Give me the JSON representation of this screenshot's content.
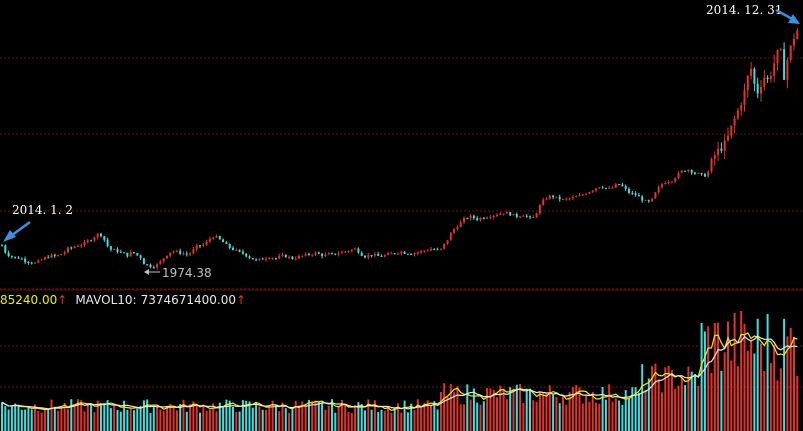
{
  "chart_data": {
    "type": "candlestick",
    "annotations": {
      "start_date": "2014. 1. 2",
      "end_date": "2014. 12. 31",
      "low_value": "1974.38"
    },
    "volume_legend": {
      "partial_value": "85240.00",
      "mavol10_label": "MAVOL10:",
      "mavol10_value": "7374671400.00",
      "arrow_glyph": "↑"
    },
    "price_range": [
      1900,
      3300
    ],
    "colors": {
      "up": "#e0342e",
      "down": "#44dcdc",
      "ma_white": "#e8e8e8",
      "ma_yellow": "#f0f000",
      "grid": "#7a1010",
      "arrow": "#3d8fe0"
    },
    "price_path": [
      [
        0,
        2115
      ],
      [
        4,
        2060
      ],
      [
        8,
        2040
      ],
      [
        12,
        2030
      ],
      [
        16,
        2020
      ],
      [
        20,
        2025
      ],
      [
        24,
        2010
      ],
      [
        28,
        2005
      ],
      [
        32,
        2000
      ],
      [
        36,
        1995
      ],
      [
        40,
        2010
      ],
      [
        44,
        2020
      ],
      [
        48,
        2030
      ],
      [
        52,
        2035
      ],
      [
        56,
        2030
      ],
      [
        60,
        2040
      ],
      [
        64,
        2050
      ],
      [
        68,
        2070
      ],
      [
        72,
        2075
      ],
      [
        76,
        2085
      ],
      [
        80,
        2090
      ],
      [
        84,
        2095
      ],
      [
        88,
        2110
      ],
      [
        92,
        2120
      ],
      [
        96,
        2140
      ],
      [
        100,
        2148
      ],
      [
        104,
        2120
      ],
      [
        108,
        2080
      ],
      [
        112,
        2060
      ],
      [
        116,
        2065
      ],
      [
        120,
        2050
      ],
      [
        124,
        2045
      ],
      [
        128,
        2035
      ],
      [
        132,
        2055
      ],
      [
        136,
        2040
      ],
      [
        140,
        2030
      ],
      [
        144,
        1995
      ],
      [
        148,
        1985
      ],
      [
        152,
        1978
      ],
      [
        156,
        1984
      ],
      [
        160,
        2000
      ],
      [
        164,
        2025
      ],
      [
        168,
        2045
      ],
      [
        172,
        2060
      ],
      [
        176,
        2055
      ],
      [
        180,
        2050
      ],
      [
        184,
        2045
      ],
      [
        188,
        2040
      ],
      [
        192,
        2055
      ],
      [
        196,
        2080
      ],
      [
        200,
        2085
      ],
      [
        204,
        2090
      ],
      [
        208,
        2110
      ],
      [
        212,
        2135
      ],
      [
        216,
        2130
      ],
      [
        220,
        2115
      ],
      [
        224,
        2100
      ],
      [
        228,
        2080
      ],
      [
        232,
        2070
      ],
      [
        236,
        2060
      ],
      [
        240,
        2050
      ],
      [
        244,
        2045
      ],
      [
        248,
        2030
      ],
      [
        252,
        2020
      ],
      [
        256,
        2010
      ],
      [
        260,
        2015
      ],
      [
        264,
        2020
      ],
      [
        268,
        2030
      ],
      [
        272,
        2025
      ],
      [
        276,
        2020
      ],
      [
        280,
        2030
      ],
      [
        284,
        2035
      ],
      [
        288,
        2028
      ],
      [
        292,
        2020
      ],
      [
        296,
        2025
      ],
      [
        300,
        2030
      ],
      [
        304,
        2035
      ],
      [
        308,
        2040
      ],
      [
        312,
        2045
      ],
      [
        316,
        2048
      ],
      [
        320,
        2040
      ],
      [
        324,
        2035
      ],
      [
        328,
        2042
      ],
      [
        332,
        2040
      ],
      [
        336,
        2045
      ],
      [
        340,
        2050
      ],
      [
        344,
        2055
      ],
      [
        348,
        2060
      ],
      [
        352,
        2065
      ],
      [
        356,
        2070
      ],
      [
        360,
        2048
      ],
      [
        364,
        2030
      ],
      [
        368,
        2035
      ],
      [
        372,
        2040
      ],
      [
        376,
        2035
      ],
      [
        380,
        2030
      ],
      [
        384,
        2035
      ],
      [
        388,
        2040
      ],
      [
        392,
        2045
      ],
      [
        396,
        2050
      ],
      [
        400,
        2055
      ],
      [
        404,
        2050
      ],
      [
        408,
        2048
      ],
      [
        412,
        2045
      ],
      [
        416,
        2050
      ],
      [
        420,
        2055
      ],
      [
        424,
        2060
      ],
      [
        428,
        2065
      ],
      [
        432,
        2070
      ],
      [
        436,
        2065
      ],
      [
        440,
        2060
      ],
      [
        444,
        2090
      ],
      [
        448,
        2120
      ],
      [
        452,
        2160
      ],
      [
        456,
        2180
      ],
      [
        460,
        2200
      ],
      [
        464,
        2220
      ],
      [
        468,
        2230
      ],
      [
        472,
        2235
      ],
      [
        476,
        2220
      ],
      [
        480,
        2225
      ],
      [
        484,
        2230
      ],
      [
        488,
        2235
      ],
      [
        492,
        2240
      ],
      [
        496,
        2245
      ],
      [
        500,
        2250
      ],
      [
        504,
        2255
      ],
      [
        508,
        2250
      ],
      [
        512,
        2245
      ],
      [
        516,
        2235
      ],
      [
        520,
        2240
      ],
      [
        524,
        2245
      ],
      [
        528,
        2230
      ],
      [
        532,
        2220
      ],
      [
        536,
        2250
      ],
      [
        540,
        2290
      ],
      [
        544,
        2320
      ],
      [
        548,
        2335
      ],
      [
        552,
        2340
      ],
      [
        556,
        2330
      ],
      [
        560,
        2325
      ],
      [
        564,
        2320
      ],
      [
        568,
        2325
      ],
      [
        572,
        2330
      ],
      [
        576,
        2335
      ],
      [
        580,
        2340
      ],
      [
        584,
        2350
      ],
      [
        588,
        2360
      ],
      [
        592,
        2370
      ],
      [
        596,
        2380
      ],
      [
        600,
        2390
      ],
      [
        604,
        2385
      ],
      [
        608,
        2375
      ],
      [
        612,
        2380
      ],
      [
        616,
        2395
      ],
      [
        620,
        2400
      ],
      [
        624,
        2380
      ],
      [
        628,
        2360
      ],
      [
        632,
        2350
      ],
      [
        636,
        2345
      ],
      [
        640,
        2330
      ],
      [
        644,
        2315
      ],
      [
        648,
        2305
      ],
      [
        652,
        2320
      ],
      [
        656,
        2360
      ],
      [
        660,
        2390
      ],
      [
        664,
        2410
      ],
      [
        668,
        2415
      ],
      [
        672,
        2420
      ],
      [
        676,
        2440
      ],
      [
        680,
        2460
      ],
      [
        684,
        2470
      ],
      [
        688,
        2475
      ],
      [
        692,
        2465
      ],
      [
        696,
        2455
      ],
      [
        700,
        2450
      ],
      [
        704,
        2440
      ],
      [
        708,
        2460
      ],
      [
        712,
        2520
      ],
      [
        716,
        2560
      ],
      [
        720,
        2580
      ],
      [
        724,
        2600
      ],
      [
        728,
        2640
      ],
      [
        732,
        2700
      ],
      [
        736,
        2750
      ],
      [
        740,
        2800
      ],
      [
        744,
        2860
      ],
      [
        748,
        2950
      ],
      [
        752,
        3000
      ],
      [
        756,
        2850
      ],
      [
        760,
        2900
      ],
      [
        764,
        2950
      ],
      [
        768,
        2930
      ],
      [
        772,
        2980
      ],
      [
        776,
        3050
      ],
      [
        780,
        3100
      ],
      [
        784,
        2950
      ],
      [
        788,
        3050
      ],
      [
        792,
        3120
      ],
      [
        796,
        3180
      ],
      [
        800,
        3200
      ]
    ]
  }
}
